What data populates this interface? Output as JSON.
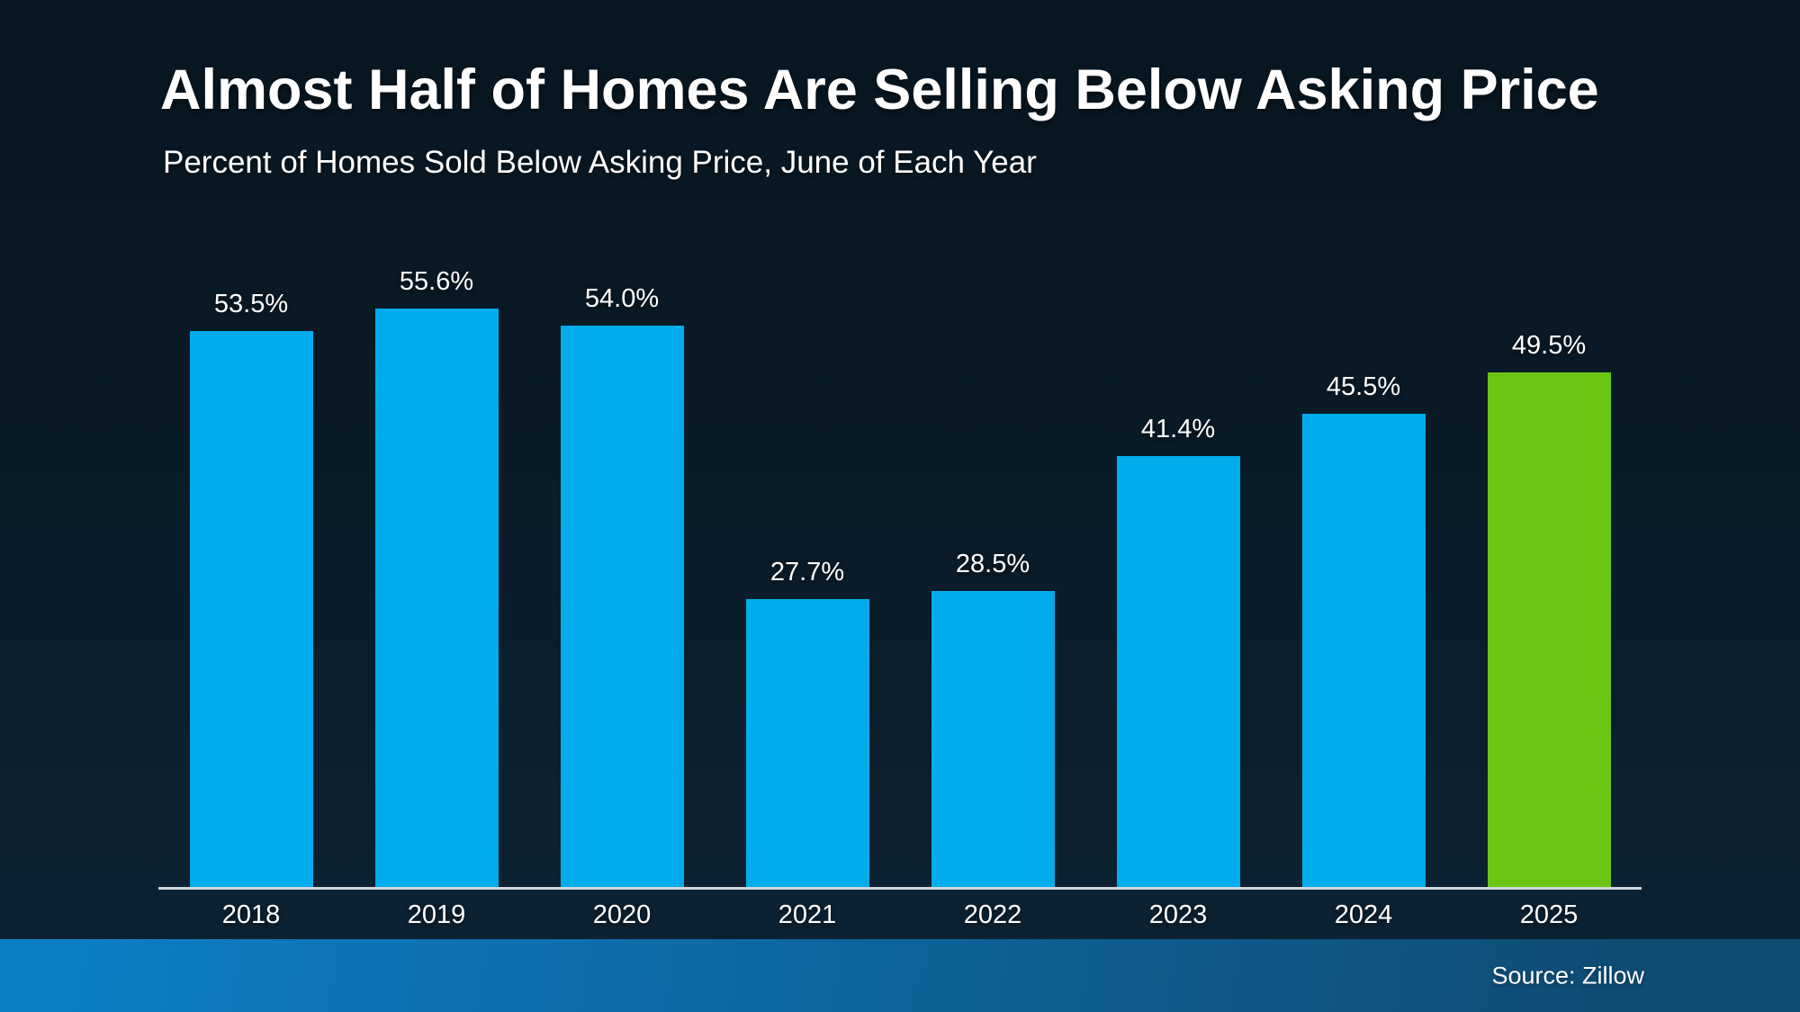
{
  "slide": {
    "title": "Almost Half of Homes Are Selling Below Asking Price",
    "subtitle": "Percent of Homes Sold Below Asking Price, June of Each Year",
    "source": "Source: Zillow"
  },
  "colors": {
    "bar": "#00ACEC",
    "highlight": "#6CC513",
    "background_top": "#081722",
    "background_mid": "#0A1C29",
    "background_bottom": "#0D2334",
    "axis_line": "#CFD6DC",
    "footer_left": "#0B80C9",
    "footer_right": "#0F4C74",
    "text": "#FFFFFF"
  },
  "chart_data": {
    "type": "bar",
    "title": "Almost Half of Homes Are Selling Below Asking Price",
    "subtitle": "Percent of Homes Sold Below Asking Price, June of Each Year",
    "categories": [
      "2018",
      "2019",
      "2020",
      "2021",
      "2022",
      "2023",
      "2024",
      "2025"
    ],
    "values": [
      53.5,
      55.6,
      54.0,
      27.7,
      28.5,
      41.4,
      45.5,
      49.5
    ],
    "labels": [
      "53.5%",
      "55.6%",
      "54.0%",
      "27.7%",
      "28.5%",
      "41.4%",
      "45.5%",
      "49.5%"
    ],
    "highlight_index": 7,
    "xlabel": "",
    "ylabel": "",
    "ylim": [
      0,
      60
    ],
    "grid": false,
    "legend": false,
    "value_labels_position": "above-bars",
    "source": "Source: Zillow"
  }
}
